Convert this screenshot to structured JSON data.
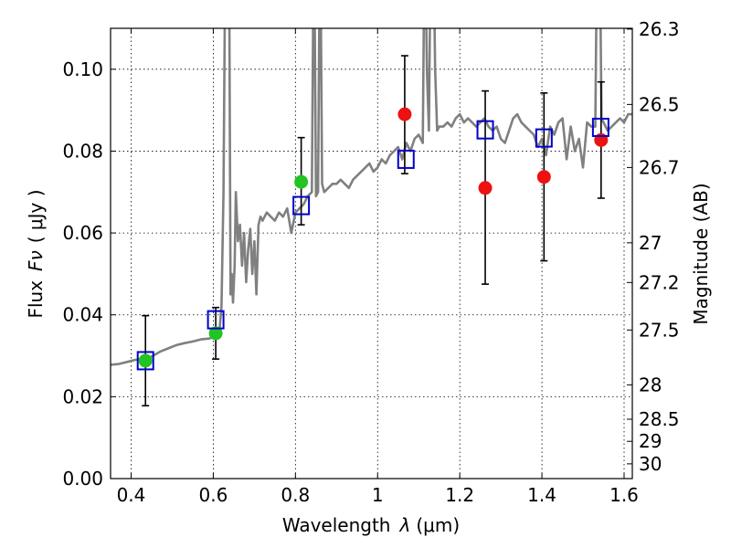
{
  "chart_data": {
    "type": "scatter",
    "title": "",
    "xlabel": "Wavelength",
    "xlabel_symbol": "λ",
    "xlabel_unit": "(μm)",
    "ylabel": "Flux",
    "ylabel_symbol": "Fν",
    "ylabel_unit": "( μJy )",
    "ylabel_right": "Magnitude (AB)",
    "xlim": [
      0.35,
      1.62
    ],
    "ylim": [
      0.0,
      0.11
    ],
    "grid": true,
    "x_ticks": [
      0.4,
      0.6,
      0.8,
      1.0,
      1.2,
      1.4,
      1.6
    ],
    "x_tick_labels": [
      "0.4",
      "0.6",
      "0.8",
      "1",
      "1.2",
      "1.4",
      "1.6"
    ],
    "y_ticks": [
      0.0,
      0.02,
      0.04,
      0.06,
      0.08,
      0.1
    ],
    "y_tick_labels": [
      "0.00",
      "0.02",
      "0.04",
      "0.06",
      "0.08",
      "0.10"
    ],
    "right_ticks": [
      {
        "label": "26.3",
        "flux": 0.1098
      },
      {
        "label": "26.5",
        "flux": 0.0914
      },
      {
        "label": "26.7",
        "flux": 0.076
      },
      {
        "label": "27",
        "flux": 0.0576
      },
      {
        "label": "27.2",
        "flux": 0.0479
      },
      {
        "label": "27.5",
        "flux": 0.0363
      },
      {
        "label": "28",
        "flux": 0.0229
      },
      {
        "label": "28.5",
        "flux": 0.0145
      },
      {
        "label": "29",
        "flux": 0.0091
      },
      {
        "label": "30",
        "flux": 0.0036
      }
    ],
    "series": [
      {
        "name": "spectrum",
        "kind": "line",
        "color": "#808080",
        "x": [
          0.35,
          0.37,
          0.39,
          0.41,
          0.43,
          0.45,
          0.47,
          0.49,
          0.51,
          0.53,
          0.55,
          0.57,
          0.59,
          0.605,
          0.615,
          0.62,
          0.625,
          0.63,
          0.635,
          0.638,
          0.642,
          0.645,
          0.648,
          0.652,
          0.655,
          0.66,
          0.665,
          0.67,
          0.675,
          0.68,
          0.685,
          0.69,
          0.695,
          0.7,
          0.705,
          0.71,
          0.715,
          0.72,
          0.73,
          0.74,
          0.75,
          0.76,
          0.77,
          0.78,
          0.79,
          0.8,
          0.81,
          0.82,
          0.83,
          0.84,
          0.845,
          0.85,
          0.855,
          0.86,
          0.865,
          0.87,
          0.88,
          0.89,
          0.9,
          0.91,
          0.92,
          0.93,
          0.94,
          0.95,
          0.96,
          0.97,
          0.98,
          0.99,
          1.0,
          1.01,
          1.02,
          1.03,
          1.04,
          1.05,
          1.06,
          1.07,
          1.08,
          1.09,
          1.1,
          1.11,
          1.115,
          1.12,
          1.125,
          1.13,
          1.135,
          1.14,
          1.145,
          1.15,
          1.16,
          1.17,
          1.18,
          1.19,
          1.2,
          1.21,
          1.22,
          1.23,
          1.24,
          1.25,
          1.26,
          1.27,
          1.28,
          1.29,
          1.3,
          1.31,
          1.32,
          1.33,
          1.34,
          1.35,
          1.36,
          1.37,
          1.38,
          1.39,
          1.4,
          1.41,
          1.42,
          1.43,
          1.44,
          1.45,
          1.46,
          1.47,
          1.48,
          1.49,
          1.5,
          1.51,
          1.52,
          1.53,
          1.535,
          1.54,
          1.545,
          1.55,
          1.56,
          1.57,
          1.58,
          1.59,
          1.6,
          1.61,
          1.62
        ],
        "y": [
          0.0278,
          0.028,
          0.0285,
          0.029,
          0.0292,
          0.0298,
          0.031,
          0.0318,
          0.0326,
          0.0331,
          0.0335,
          0.034,
          0.0342,
          0.0348,
          0.036,
          0.042,
          0.07,
          0.14,
          0.14,
          0.14,
          0.045,
          0.05,
          0.043,
          0.052,
          0.07,
          0.058,
          0.062,
          0.052,
          0.06,
          0.048,
          0.056,
          0.061,
          0.05,
          0.058,
          0.045,
          0.062,
          0.064,
          0.063,
          0.065,
          0.064,
          0.063,
          0.065,
          0.064,
          0.066,
          0.06,
          0.065,
          0.066,
          0.067,
          0.069,
          0.07,
          0.14,
          0.069,
          0.07,
          0.14,
          0.072,
          0.07,
          0.071,
          0.072,
          0.072,
          0.073,
          0.072,
          0.071,
          0.073,
          0.074,
          0.075,
          0.076,
          0.077,
          0.075,
          0.076,
          0.078,
          0.077,
          0.079,
          0.08,
          0.081,
          0.078,
          0.082,
          0.08,
          0.083,
          0.084,
          0.082,
          0.14,
          0.1,
          0.085,
          0.14,
          0.14,
          0.1,
          0.085,
          0.086,
          0.086,
          0.087,
          0.086,
          0.088,
          0.089,
          0.087,
          0.088,
          0.087,
          0.086,
          0.087,
          0.088,
          0.086,
          0.085,
          0.086,
          0.083,
          0.082,
          0.085,
          0.088,
          0.089,
          0.087,
          0.086,
          0.085,
          0.084,
          0.081,
          0.083,
          0.079,
          0.086,
          0.084,
          0.087,
          0.088,
          0.078,
          0.086,
          0.08,
          0.083,
          0.076,
          0.087,
          0.086,
          0.086,
          0.14,
          0.14,
          0.088,
          0.087,
          0.085,
          0.086,
          0.087,
          0.088,
          0.087,
          0.089,
          0.089
        ]
      },
      {
        "name": "model photometry",
        "kind": "open-square",
        "color": "#0000cc",
        "x": [
          0.435,
          0.606,
          0.814,
          1.069,
          1.262,
          1.405,
          1.543
        ],
        "y": [
          0.0288,
          0.0388,
          0.0667,
          0.078,
          0.0852,
          0.0832,
          0.0858
        ]
      },
      {
        "name": "observed (green)",
        "kind": "filled-circle",
        "color": "#22c422",
        "x": [
          0.435,
          0.606,
          0.814
        ],
        "y": [
          0.0288,
          0.0355,
          0.0725
        ],
        "yerr_low": [
          0.011,
          0.0063,
          0.0105
        ],
        "yerr_high": [
          0.011,
          0.0063,
          0.0108
        ]
      },
      {
        "name": "observed (red)",
        "kind": "filled-circle",
        "color": "#ee1111",
        "x": [
          1.066,
          1.262,
          1.405,
          1.544
        ],
        "y": [
          0.089,
          0.071,
          0.0737,
          0.0827
        ],
        "yerr_low": [
          0.0145,
          0.0235,
          0.0205,
          0.0142
        ],
        "yerr_high": [
          0.0143,
          0.0237,
          0.0205,
          0.0142
        ]
      }
    ]
  }
}
